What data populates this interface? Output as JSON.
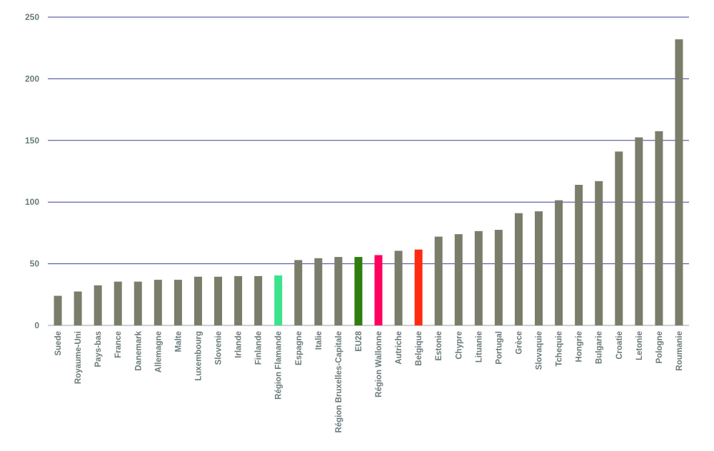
{
  "chart_data": {
    "type": "bar",
    "title": "",
    "xlabel": "",
    "ylabel": "",
    "ylim": [
      0,
      250
    ],
    "yticks": [
      0,
      50,
      100,
      150,
      200,
      250
    ],
    "grid": true,
    "legend": "none",
    "default_color": "#7a7d6a",
    "categories": [
      "Suede",
      "Royaume-Uni",
      "Pays-bas",
      "France",
      "Danemark",
      "Allemagne",
      "Malte",
      "Luxembourg",
      "Slovenie",
      "Irlande",
      "Finlande",
      "Région Flamande",
      "Espagne",
      "Italie",
      "Région Bruxelles-Capitale",
      "EU28",
      "Région Wallonne",
      "Autriche",
      "Belgique",
      "Estonie",
      "Chypre",
      "Lituanie",
      "Portugal",
      "Grèce",
      "Slovaquie",
      "Tchequie",
      "Hongrie",
      "Bulgarie",
      "Croatie",
      "Letonie",
      "Pologne",
      "Roumanie"
    ],
    "values": [
      24,
      27.5,
      32.5,
      35.5,
      35.5,
      37,
      37,
      39.5,
      39.5,
      40,
      40,
      40.5,
      53,
      54.5,
      55.5,
      55.5,
      57,
      60.5,
      61.5,
      72,
      74,
      76.5,
      77.5,
      91,
      92.5,
      101.5,
      114,
      117,
      141,
      152.5,
      157.5,
      232
    ],
    "highlight_colors": {
      "Région Flamande": "#3de38a",
      "EU28": "#2e7d0e",
      "Région Wallonne": "#ff0060",
      "Belgique": "#ff2a12"
    }
  }
}
